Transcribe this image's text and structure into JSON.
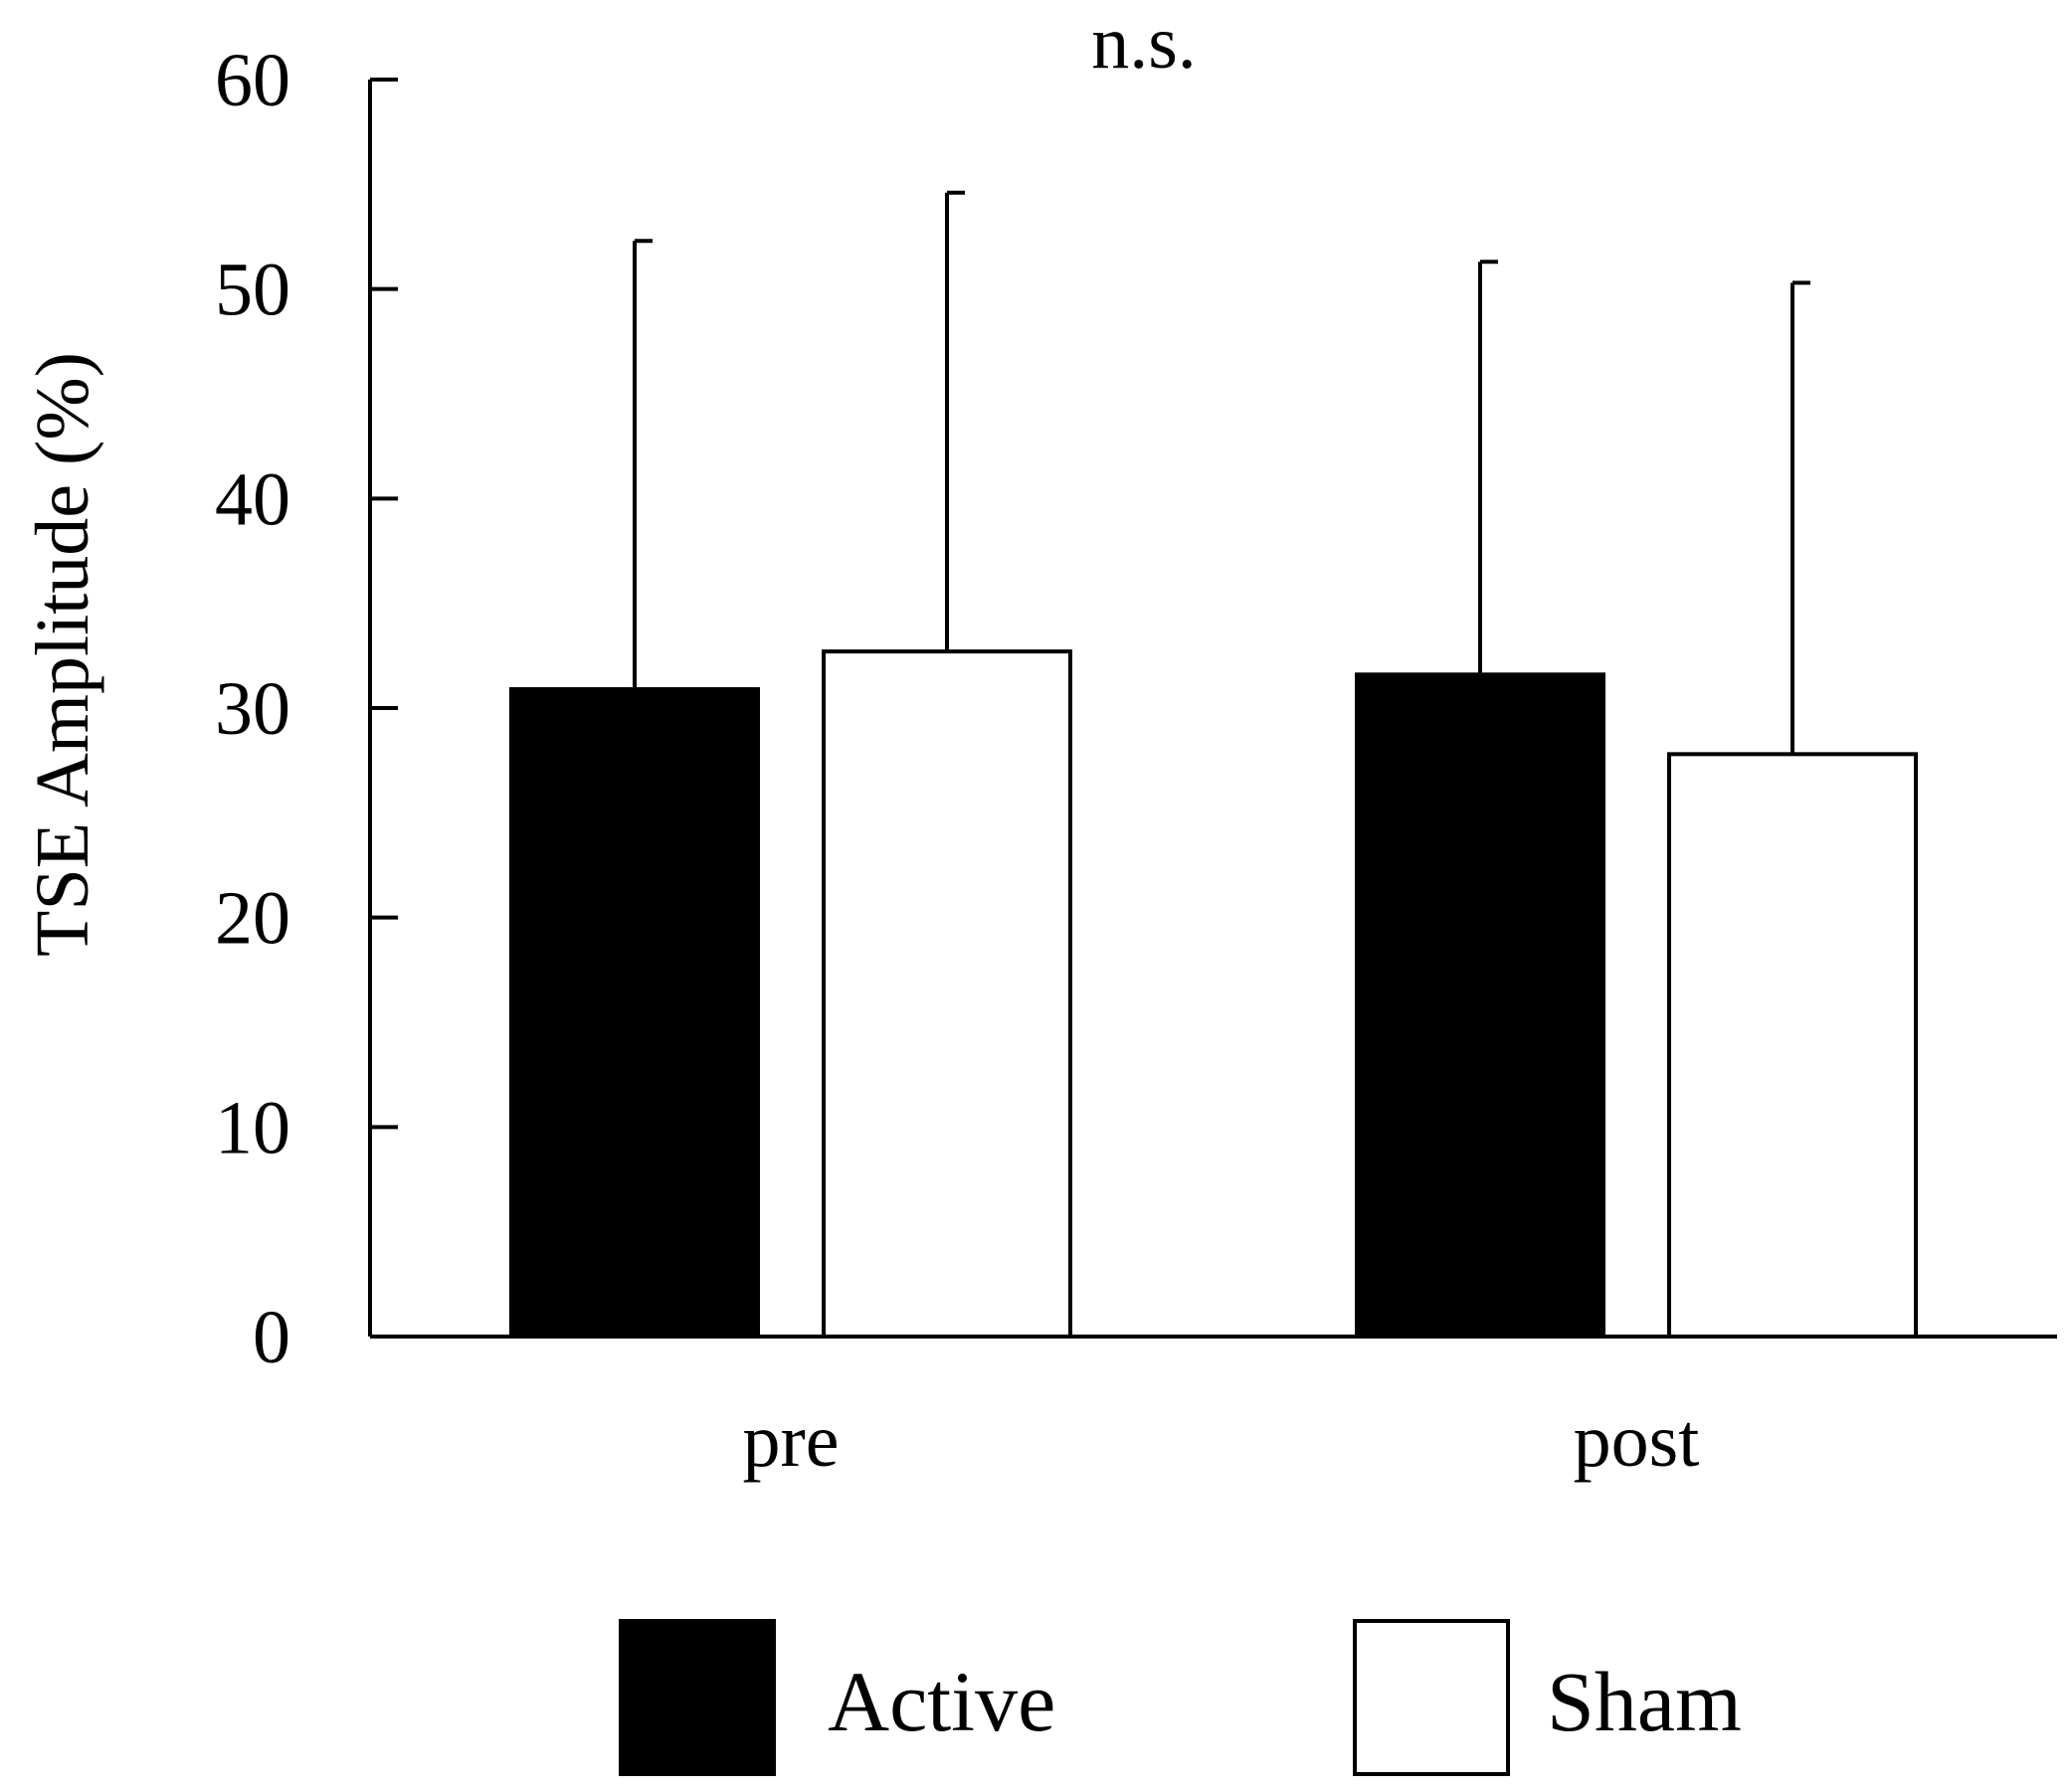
{
  "chart_data": {
    "type": "bar",
    "title": "",
    "annotation": "n.s.",
    "xlabel": "",
    "ylabel": "TSE Amplitude (%)",
    "ylim": [
      0,
      60
    ],
    "yticks": [
      "0",
      "10",
      "20",
      "30",
      "40",
      "50",
      "60"
    ],
    "categories": [
      "pre",
      "post"
    ],
    "series": [
      {
        "name": "Active",
        "values": [
          30.9,
          31.6
        ],
        "error": [
          21.4,
          19.7
        ],
        "color": "#000000"
      },
      {
        "name": "Sham",
        "values": [
          32.7,
          27.8
        ],
        "error": [
          21.9,
          22.5
        ],
        "color": "#ffffff"
      }
    ],
    "legend_position": "bottom",
    "grid": false
  }
}
